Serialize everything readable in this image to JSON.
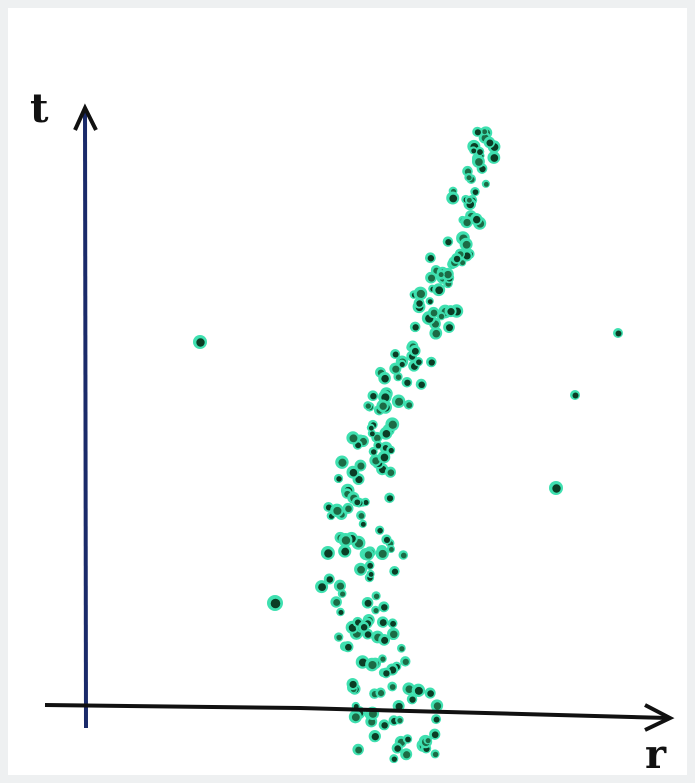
{
  "axes": {
    "y_label": "t",
    "x_label": "r"
  }
}
